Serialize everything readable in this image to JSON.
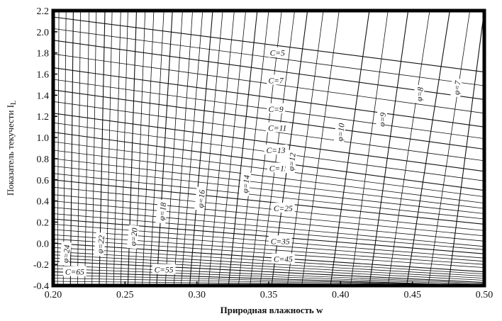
{
  "chart_data": {
    "type": "line",
    "title": "",
    "xlabel": "Природная влажность w",
    "ylabel": "Показатель текучести I",
    "ylabel_subscript": "L",
    "xlim": [
      0.2,
      0.5
    ],
    "ylim": [
      -0.4,
      2.2
    ],
    "x_ticks": [
      "0.20",
      "0.25",
      "0.30",
      "0.35",
      "0.40",
      "0.45",
      "0.50"
    ],
    "y_ticks": [
      "-0.4",
      "-0.2",
      "0.0",
      "0.2",
      "0.4",
      "0.6",
      "0.8",
      "1.0",
      "1.2",
      "1.4",
      "1.6",
      "1.8",
      "2.0",
      "2.2"
    ],
    "grid": false,
    "c_families": {
      "description_of_curves": "cohesion isolines",
      "labels": [
        {
          "text": "C=5",
          "x": 0.356,
          "y": 1.8
        },
        {
          "text": "C=7",
          "x": 0.355,
          "y": 1.54
        },
        {
          "text": "C=9",
          "x": 0.355,
          "y": 1.27
        },
        {
          "text": "C=11",
          "x": 0.356,
          "y": 1.09
        },
        {
          "text": "C=13",
          "x": 0.355,
          "y": 0.88
        },
        {
          "text": "C=15",
          "x": 0.357,
          "y": 0.71
        },
        {
          "text": "C=25",
          "x": 0.36,
          "y": 0.33
        },
        {
          "text": "C=35",
          "x": 0.358,
          "y": 0.02
        },
        {
          "text": "C=45",
          "x": 0.36,
          "y": -0.15
        },
        {
          "text": "C=55",
          "x": 0.277,
          "y": -0.25
        },
        {
          "text": "C=65",
          "x": 0.215,
          "y": -0.27
        }
      ],
      "lines": [
        {
          "name": "C=5",
          "points": [
            [
              0.2,
              2.14
            ],
            [
              0.5,
              1.62
            ]
          ]
        },
        {
          "name": "C=7",
          "points": [
            [
              0.2,
              1.92
            ],
            [
              0.5,
              1.36
            ]
          ]
        },
        {
          "name": "C=9",
          "points": [
            [
              0.2,
              1.66
            ],
            [
              0.5,
              1.1
            ]
          ]
        },
        {
          "name": "C=11",
          "points": [
            [
              0.2,
              1.45
            ],
            [
              0.5,
              0.89
            ]
          ]
        },
        {
          "name": "C=13",
          "points": [
            [
              0.2,
              1.23
            ],
            [
              0.5,
              0.68
            ]
          ]
        },
        {
          "name": "C=15",
          "points": [
            [
              0.2,
              1.05
            ],
            [
              0.5,
              0.5
            ]
          ]
        },
        {
          "name": "C=25",
          "points": [
            [
              0.2,
              0.6
            ],
            [
              0.5,
              0.18
            ]
          ]
        },
        {
          "name": "C=35",
          "points": [
            [
              0.2,
              0.23
            ],
            [
              0.5,
              -0.1
            ]
          ]
        },
        {
          "name": "C=45",
          "points": [
            [
              0.2,
              0.0
            ],
            [
              0.5,
              -0.27
            ]
          ]
        },
        {
          "name": "C=55",
          "points": [
            [
              0.2,
              -0.17
            ],
            [
              0.5,
              -0.37
            ]
          ]
        },
        {
          "name": "C=65",
          "points": [
            [
              0.2,
              -0.27
            ],
            [
              0.5,
              -0.4
            ]
          ]
        }
      ],
      "minor_lines": [
        {
          "points": [
            [
              0.2,
              2.03
            ],
            [
              0.5,
              1.49
            ]
          ]
        },
        {
          "points": [
            [
              0.2,
              1.79
            ],
            [
              0.5,
              1.23
            ]
          ]
        },
        {
          "points": [
            [
              0.2,
              1.55
            ],
            [
              0.5,
              0.99
            ]
          ]
        },
        {
          "points": [
            [
              0.2,
              1.34
            ],
            [
              0.5,
              0.78
            ]
          ]
        },
        {
          "points": [
            [
              0.2,
              1.14
            ],
            [
              0.5,
              0.59
            ]
          ]
        },
        {
          "points": [
            [
              0.2,
              0.96
            ],
            [
              0.5,
              0.44
            ]
          ]
        },
        {
          "points": [
            [
              0.2,
              0.88
            ],
            [
              0.5,
              0.38
            ]
          ]
        },
        {
          "points": [
            [
              0.2,
              0.8
            ],
            [
              0.5,
              0.33
            ]
          ]
        },
        {
          "points": [
            [
              0.2,
              0.73
            ],
            [
              0.5,
              0.28
            ]
          ]
        },
        {
          "points": [
            [
              0.2,
              0.66
            ],
            [
              0.5,
              0.23
            ]
          ]
        },
        {
          "points": [
            [
              0.2,
              0.53
            ],
            [
              0.5,
              0.12
            ]
          ]
        },
        {
          "points": [
            [
              0.2,
              0.46
            ],
            [
              0.5,
              0.07
            ]
          ]
        },
        {
          "points": [
            [
              0.2,
              0.4
            ],
            [
              0.5,
              0.02
            ]
          ]
        },
        {
          "points": [
            [
              0.2,
              0.34
            ],
            [
              0.5,
              -0.03
            ]
          ]
        },
        {
          "points": [
            [
              0.2,
              0.28
            ],
            [
              0.5,
              -0.06
            ]
          ]
        },
        {
          "points": [
            [
              0.2,
              0.18
            ],
            [
              0.5,
              -0.14
            ]
          ]
        },
        {
          "points": [
            [
              0.2,
              0.13
            ],
            [
              0.5,
              -0.17
            ]
          ]
        },
        {
          "points": [
            [
              0.2,
              0.08
            ],
            [
              0.5,
              -0.2
            ]
          ]
        },
        {
          "points": [
            [
              0.2,
              0.04
            ],
            [
              0.5,
              -0.23
            ]
          ]
        },
        {
          "points": [
            [
              0.2,
              -0.04
            ],
            [
              0.5,
              -0.29
            ]
          ]
        },
        {
          "points": [
            [
              0.2,
              -0.08
            ],
            [
              0.5,
              -0.31
            ]
          ]
        },
        {
          "points": [
            [
              0.2,
              -0.11
            ],
            [
              0.5,
              -0.33
            ]
          ]
        },
        {
          "points": [
            [
              0.2,
              -0.14
            ],
            [
              0.5,
              -0.35
            ]
          ]
        },
        {
          "points": [
            [
              0.2,
              -0.21
            ],
            [
              0.5,
              -0.38
            ]
          ]
        },
        {
          "points": [
            [
              0.2,
              -0.24
            ],
            [
              0.5,
              -0.39
            ]
          ]
        },
        {
          "points": [
            [
              0.2,
              -0.3
            ],
            [
              0.5,
              -0.4
            ]
          ]
        },
        {
          "points": [
            [
              0.2,
              -0.33
            ],
            [
              0.5,
              -0.4
            ]
          ]
        },
        {
          "points": [
            [
              0.2,
              -0.36
            ],
            [
              0.5,
              -0.4
            ]
          ]
        }
      ]
    },
    "phi_families": {
      "labels": [
        {
          "text": "φ=7",
          "x": 0.481,
          "y": 1.47
        },
        {
          "text": "φ=8",
          "x": 0.455,
          "y": 1.41
        },
        {
          "text": "φ=9",
          "x": 0.429,
          "y": 1.17
        },
        {
          "text": "φ=10",
          "x": 0.4,
          "y": 1.05
        },
        {
          "text": "φ=12",
          "x": 0.366,
          "y": 0.77
        },
        {
          "text": "φ=14",
          "x": 0.334,
          "y": 0.56
        },
        {
          "text": "φ=16",
          "x": 0.303,
          "y": 0.42
        },
        {
          "text": "φ=18",
          "x": 0.276,
          "y": 0.3
        },
        {
          "text": "φ=20",
          "x": 0.256,
          "y": 0.06
        },
        {
          "text": "φ=22",
          "x": 0.233,
          "y": -0.01
        },
        {
          "text": "φ=24",
          "x": 0.209,
          "y": -0.1
        }
      ],
      "lines": [
        {
          "name": "φ=7",
          "points": [
            [
              0.5,
              2.2
            ],
            [
              0.475,
              -0.4
            ]
          ]
        },
        {
          "name": "φ=8",
          "points": [
            [
              0.476,
              2.2
            ],
            [
              0.446,
              -0.4
            ]
          ]
        },
        {
          "name": "φ=9",
          "points": [
            [
              0.447,
              2.2
            ],
            [
              0.42,
              -0.4
            ]
          ]
        },
        {
          "name": "φ=10",
          "points": [
            [
              0.42,
              2.2
            ],
            [
              0.393,
              -0.4
            ]
          ]
        },
        {
          "name": "φ=12",
          "points": [
            [
              0.377,
              2.2
            ],
            [
              0.352,
              -0.4
            ]
          ]
        },
        {
          "name": "φ=14",
          "points": [
            [
              0.342,
              2.2
            ],
            [
              0.322,
              -0.4
            ]
          ]
        },
        {
          "name": "φ=16",
          "points": [
            [
              0.311,
              2.2
            ],
            [
              0.295,
              -0.4
            ]
          ]
        },
        {
          "name": "φ=18",
          "points": [
            [
              0.283,
              2.2
            ],
            [
              0.272,
              -0.4
            ]
          ]
        },
        {
          "name": "φ=20",
          "points": [
            [
              0.258,
              2.2
            ],
            [
              0.252,
              -0.4
            ]
          ]
        },
        {
          "name": "φ=22",
          "points": [
            [
              0.236,
              2.2
            ],
            [
              0.232,
              -0.4
            ]
          ]
        },
        {
          "name": "φ=24",
          "points": [
            [
              0.214,
              2.2
            ],
            [
              0.212,
              -0.4
            ]
          ]
        }
      ],
      "minor_lines": [
        {
          "points": [
            [
              0.399,
              2.2
            ],
            [
              0.373,
              -0.4
            ]
          ]
        },
        {
          "points": [
            [
              0.359,
              2.2
            ],
            [
              0.337,
              -0.4
            ]
          ]
        },
        {
          "points": [
            [
              0.326,
              2.2
            ],
            [
              0.308,
              -0.4
            ]
          ]
        },
        {
          "points": [
            [
              0.297,
              2.2
            ],
            [
              0.284,
              -0.4
            ]
          ]
        },
        {
          "points": [
            [
              0.27,
              2.2
            ],
            [
              0.262,
              -0.4
            ]
          ]
        },
        {
          "points": [
            [
              0.247,
              2.2
            ],
            [
              0.242,
              -0.4
            ]
          ]
        },
        {
          "points": [
            [
              0.225,
              2.2
            ],
            [
              0.222,
              -0.4
            ]
          ]
        },
        {
          "points": [
            [
              0.204,
              2.2
            ],
            [
              0.203,
              -0.4
            ]
          ]
        },
        {
          "points": [
            [
              0.49,
              2.2
            ],
            [
              0.461,
              -0.4
            ]
          ]
        },
        {
          "points": [
            [
              0.462,
              2.2
            ],
            [
              0.433,
              -0.4
            ]
          ]
        },
        {
          "points": [
            [
              0.433,
              2.2
            ],
            [
              0.407,
              -0.4
            ]
          ]
        },
        {
          "points": [
            [
              0.388,
              2.2
            ],
            [
              0.363,
              -0.4
            ]
          ]
        },
        {
          "points": [
            [
              0.368,
              2.2
            ],
            [
              0.344,
              -0.4
            ]
          ]
        },
        {
          "points": [
            [
              0.35,
              2.2
            ],
            [
              0.329,
              -0.4
            ]
          ]
        },
        {
          "points": [
            [
              0.334,
              2.2
            ],
            [
              0.315,
              -0.4
            ]
          ]
        },
        {
          "points": [
            [
              0.318,
              2.2
            ],
            [
              0.301,
              -0.4
            ]
          ]
        },
        {
          "points": [
            [
              0.304,
              2.2
            ],
            [
              0.289,
              -0.4
            ]
          ]
        },
        {
          "points": [
            [
              0.29,
              2.2
            ],
            [
              0.278,
              -0.4
            ]
          ]
        },
        {
          "points": [
            [
              0.277,
              2.2
            ],
            [
              0.267,
              -0.4
            ]
          ]
        },
        {
          "points": [
            [
              0.264,
              2.2
            ],
            [
              0.257,
              -0.4
            ]
          ]
        },
        {
          "points": [
            [
              0.252,
              2.2
            ],
            [
              0.247,
              -0.4
            ]
          ]
        },
        {
          "points": [
            [
              0.241,
              2.2
            ],
            [
              0.237,
              -0.4
            ]
          ]
        },
        {
          "points": [
            [
              0.23,
              2.2
            ],
            [
              0.227,
              -0.4
            ]
          ]
        },
        {
          "points": [
            [
              0.219,
              2.2
            ],
            [
              0.217,
              -0.4
            ]
          ]
        },
        {
          "points": [
            [
              0.209,
              2.2
            ],
            [
              0.207,
              -0.4
            ]
          ]
        }
      ]
    }
  },
  "colors": {
    "line": "#111111",
    "frame": "#000000",
    "background": "#ffffff",
    "label_bg": "#ffffff"
  }
}
